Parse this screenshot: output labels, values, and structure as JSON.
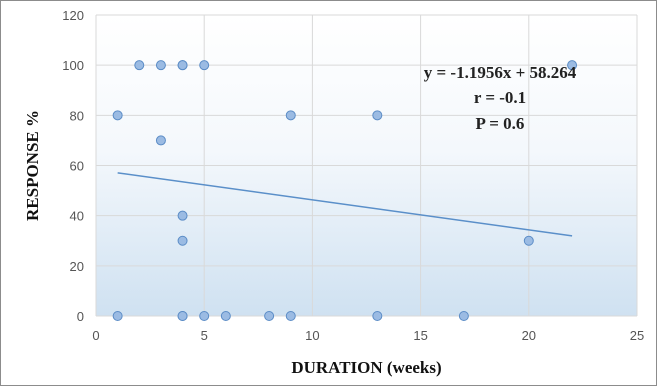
{
  "chart_data": {
    "type": "scatter",
    "xlabel": "DURATION (weeks)",
    "ylabel": "RESPONSE %",
    "xlim": [
      0,
      25
    ],
    "ylim": [
      0,
      120
    ],
    "xticks": [
      "0",
      "5",
      "10",
      "15",
      "20",
      "25"
    ],
    "yticks": [
      "0",
      "20",
      "40",
      "60",
      "80",
      "100",
      "120"
    ],
    "grid": true,
    "points": [
      {
        "x": 1,
        "y": 80
      },
      {
        "x": 1,
        "y": 0
      },
      {
        "x": 2,
        "y": 100
      },
      {
        "x": 3,
        "y": 100
      },
      {
        "x": 3,
        "y": 70
      },
      {
        "x": 4,
        "y": 100
      },
      {
        "x": 4,
        "y": 100
      },
      {
        "x": 4,
        "y": 40
      },
      {
        "x": 4,
        "y": 30
      },
      {
        "x": 4,
        "y": 0
      },
      {
        "x": 4,
        "y": 0
      },
      {
        "x": 5,
        "y": 100
      },
      {
        "x": 5,
        "y": 0
      },
      {
        "x": 6,
        "y": 0
      },
      {
        "x": 8,
        "y": 0
      },
      {
        "x": 9,
        "y": 80
      },
      {
        "x": 9,
        "y": 0
      },
      {
        "x": 13,
        "y": 80
      },
      {
        "x": 13,
        "y": 0
      },
      {
        "x": 17,
        "y": 0
      },
      {
        "x": 20,
        "y": 30
      },
      {
        "x": 22,
        "y": 100
      }
    ],
    "trendline": {
      "slope": -1.1956,
      "intercept": 58.264,
      "x_range": [
        1,
        22
      ]
    },
    "annotations": [
      "y = -1.1956x + 58.264",
      "r = -0.1",
      "P = 0.6"
    ],
    "colors": {
      "point_fill": "#9bbbe3",
      "point_stroke": "#5b8cc6",
      "trendline": "#5a8fc9",
      "gridline": "#d9d9d9"
    }
  }
}
